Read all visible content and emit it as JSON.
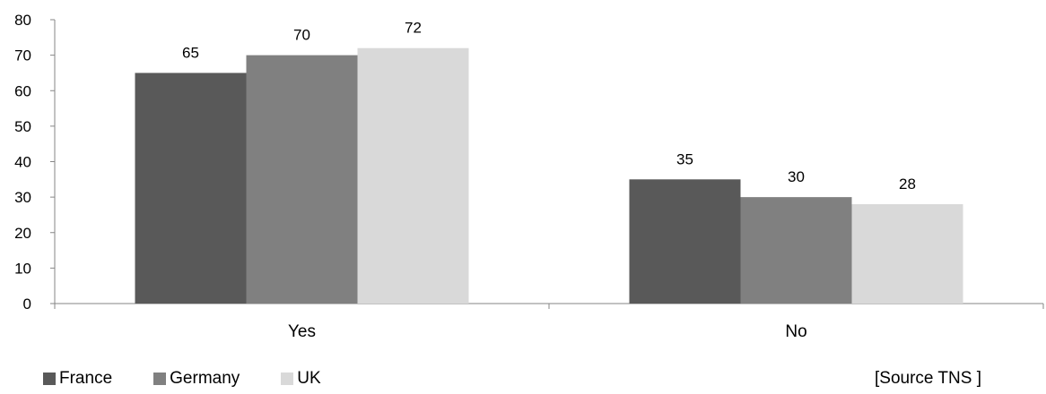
{
  "chart_data": {
    "type": "bar",
    "categories": [
      "Yes",
      "No"
    ],
    "series": [
      {
        "name": "France",
        "values": [
          65,
          35
        ],
        "color": "#595959"
      },
      {
        "name": "Germany",
        "values": [
          70,
          30
        ],
        "color": "#808080"
      },
      {
        "name": "UK",
        "values": [
          72,
          28
        ],
        "color": "#d9d9d9"
      }
    ],
    "ylim": [
      0,
      80
    ],
    "yticks": [
      0,
      10,
      20,
      30,
      40,
      50,
      60,
      70,
      80
    ],
    "data_labels": true,
    "grid": false,
    "legend": "bottom-left"
  },
  "source_note": "[Source TNS ]"
}
